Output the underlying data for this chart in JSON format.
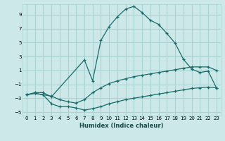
{
  "xlabel": "Humidex (Indice chaleur)",
  "bg_color": "#cce8e8",
  "grid_color": "#aad4d4",
  "line_color": "#1a6b6b",
  "xlim": [
    -0.5,
    23.5
  ],
  "ylim": [
    -5.5,
    10.5
  ],
  "xticks": [
    0,
    1,
    2,
    3,
    4,
    5,
    6,
    7,
    8,
    9,
    10,
    11,
    12,
    13,
    14,
    15,
    16,
    17,
    18,
    19,
    20,
    21,
    22,
    23
  ],
  "yticks": [
    -5,
    -3,
    -1,
    1,
    3,
    5,
    7,
    9
  ],
  "line1_x": [
    0,
    1,
    2,
    3,
    7,
    8,
    9,
    10,
    11,
    12,
    13,
    14,
    15,
    16,
    17,
    18,
    19,
    20,
    21,
    22,
    23
  ],
  "line1_y": [
    -2.5,
    -2.2,
    -2.2,
    -2.8,
    2.5,
    -0.5,
    5.3,
    7.3,
    8.7,
    9.8,
    10.2,
    9.3,
    8.2,
    7.6,
    6.3,
    4.9,
    2.6,
    1.2,
    0.7,
    0.9,
    -1.5
  ],
  "line2_x": [
    0,
    1,
    2,
    3,
    4,
    5,
    6,
    7,
    8,
    9,
    10,
    11,
    12,
    13,
    14,
    15,
    16,
    17,
    18,
    19,
    20,
    21,
    22,
    23
  ],
  "line2_y": [
    -2.5,
    -2.3,
    -2.5,
    -3.8,
    -4.2,
    -4.2,
    -4.4,
    -4.7,
    -4.5,
    -4.2,
    -3.8,
    -3.5,
    -3.2,
    -3.0,
    -2.8,
    -2.6,
    -2.4,
    -2.2,
    -2.0,
    -1.8,
    -1.6,
    -1.5,
    -1.4,
    -1.5
  ],
  "line3_x": [
    0,
    1,
    2,
    3,
    4,
    5,
    6,
    7,
    8,
    9,
    10,
    11,
    12,
    13,
    14,
    15,
    16,
    17,
    18,
    19,
    20,
    21,
    22,
    23
  ],
  "line3_y": [
    -2.5,
    -2.3,
    -2.5,
    -2.7,
    -3.2,
    -3.5,
    -3.7,
    -3.2,
    -2.2,
    -1.5,
    -0.9,
    -0.5,
    -0.2,
    0.1,
    0.3,
    0.5,
    0.7,
    0.9,
    1.1,
    1.3,
    1.5,
    1.5,
    1.5,
    1.0
  ]
}
